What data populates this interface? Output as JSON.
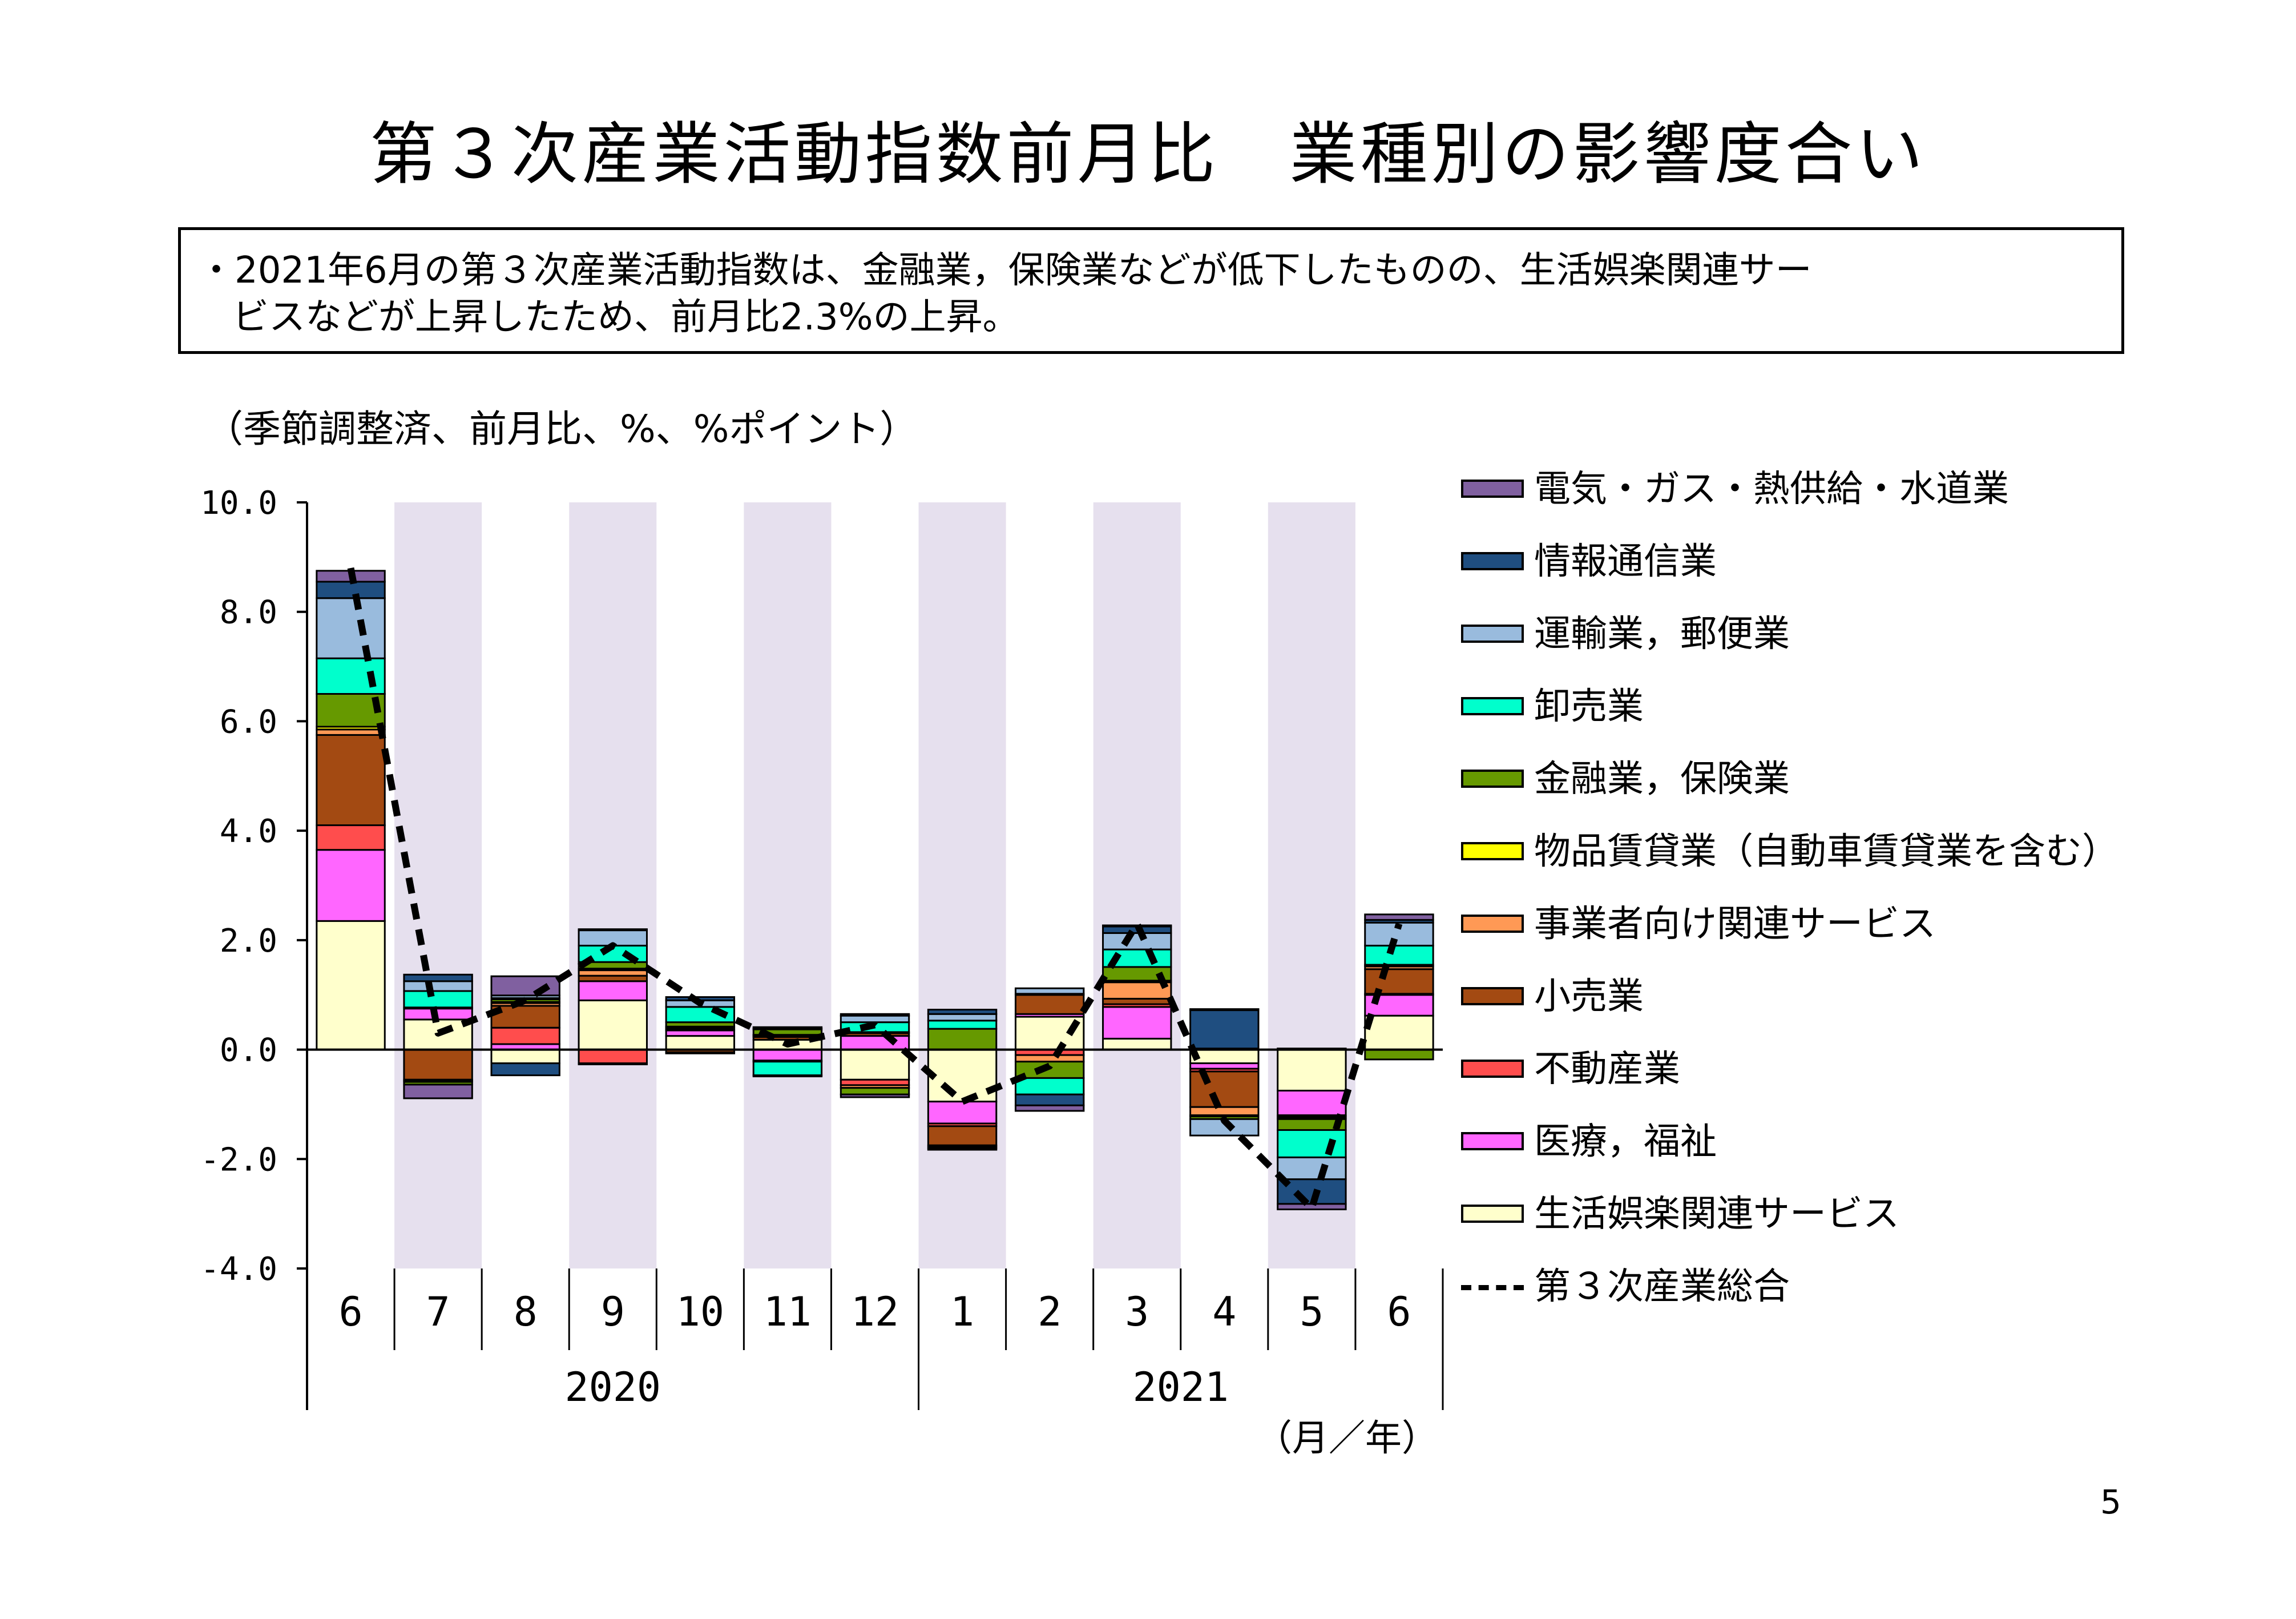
{
  "page": {
    "title": "第３次産業活動指数前月比　業種別の影響度合い",
    "summary_line1": "・2021年6月の第３次産業活動指数は、金融業，保険業などが低下したものの、生活娯楽関連サー",
    "summary_line2": "ビスなどが上昇したため、前月比2.3%の上昇。",
    "unit_note": "（季節調整済、前月比、%、%ポイント）",
    "axis_unit": "（月／年）",
    "page_number": "5"
  },
  "chart_data": {
    "type": "bar",
    "stacked": true,
    "title": "",
    "xlabel": "",
    "ylabel": "",
    "ylim": [
      -4.0,
      10.0
    ],
    "yticks": [
      -4.0,
      -2.0,
      0.0,
      2.0,
      4.0,
      6.0,
      8.0,
      10.0
    ],
    "ytick_labels": [
      "-4.0",
      "-2.0",
      "0.0",
      "2.0",
      "4.0",
      "6.0",
      "8.0",
      "10.0"
    ],
    "categories": [
      "6",
      "7",
      "8",
      "9",
      "10",
      "11",
      "12",
      "1",
      "2",
      "3",
      "4",
      "5",
      "6"
    ],
    "year_groups": [
      {
        "label": "2020",
        "start": 0,
        "end": 6
      },
      {
        "label": "2021",
        "start": 7,
        "end": 12
      }
    ],
    "shaded_columns": [
      1,
      3,
      5,
      7,
      9,
      11
    ],
    "shade_color": "#e6e0ee",
    "series": [
      {
        "name": "生活娯楽関連サービス",
        "color": "#ffffcc",
        "values": [
          2.35,
          0.55,
          -0.25,
          0.9,
          0.25,
          0.18,
          -0.55,
          -0.95,
          0.6,
          0.2,
          -0.25,
          -0.75,
          0.62
        ]
      },
      {
        "name": "医療，福祉",
        "color": "#ff66ff",
        "values": [
          1.3,
          0.2,
          0.1,
          0.35,
          0.1,
          -0.2,
          0.25,
          -0.4,
          0.05,
          0.58,
          -0.1,
          -0.45,
          0.38
        ]
      },
      {
        "name": "不動産業",
        "color": "#ff4d4d",
        "values": [
          0.45,
          0.02,
          0.3,
          -0.25,
          0.02,
          -0.02,
          -0.1,
          -0.05,
          -0.1,
          0.05,
          -0.05,
          -0.02,
          0.02
        ]
      },
      {
        "name": "小売業",
        "color": "#a34a12",
        "values": [
          1.65,
          -0.55,
          0.4,
          0.1,
          -0.05,
          0.05,
          0.05,
          -0.35,
          0.35,
          0.1,
          -0.65,
          0.02,
          0.45
        ]
      },
      {
        "name": "事業者向け関連サービス",
        "color": "#ff9955",
        "values": [
          0.1,
          -0.02,
          0.05,
          0.1,
          0.03,
          0.03,
          -0.05,
          -0.03,
          -0.12,
          0.3,
          -0.15,
          -0.03,
          0.05
        ]
      },
      {
        "name": "物品賃貸業（自動車賃貸業を含む）",
        "color": "#ffff00",
        "values": [
          0.05,
          -0.02,
          0.02,
          0.03,
          0.02,
          0.01,
          0.02,
          -0.03,
          0.02,
          0.03,
          -0.02,
          -0.02,
          0.03
        ]
      },
      {
        "name": "金融業，保険業",
        "color": "#669900",
        "values": [
          0.6,
          -0.05,
          0.05,
          0.12,
          0.08,
          0.1,
          -0.12,
          0.38,
          -0.3,
          0.25,
          -0.05,
          -0.2,
          -0.18
        ]
      },
      {
        "name": "卸売業",
        "color": "#00ffcc",
        "values": [
          0.65,
          0.3,
          0.02,
          0.3,
          0.28,
          -0.25,
          0.18,
          0.15,
          -0.3,
          0.32,
          0.02,
          -0.5,
          0.35
        ]
      },
      {
        "name": "運輸業，郵便業",
        "color": "#99bbdd",
        "values": [
          1.1,
          0.18,
          0.05,
          0.28,
          0.12,
          0.02,
          0.12,
          0.12,
          0.1,
          0.3,
          -0.3,
          -0.4,
          0.42
        ]
      },
      {
        "name": "情報通信業",
        "color": "#1f4e80",
        "values": [
          0.3,
          0.12,
          -0.22,
          0.02,
          0.06,
          0.02,
          0.03,
          0.08,
          -0.2,
          0.12,
          0.7,
          -0.45,
          0.05
        ]
      },
      {
        "name": "電気・ガス・熱供給・水道業",
        "color": "#8060a0",
        "values": [
          0.2,
          -0.25,
          0.35,
          -0.02,
          -0.02,
          -0.02,
          -0.05,
          -0.02,
          -0.1,
          0.02,
          0.02,
          -0.1,
          0.1
        ]
      }
    ],
    "total": {
      "name": "第３次産業総合",
      "values": [
        8.8,
        0.3,
        0.9,
        1.9,
        0.85,
        0.1,
        0.45,
        -0.95,
        -0.3,
        2.3,
        -1.3,
        -2.9,
        2.3
      ]
    }
  }
}
